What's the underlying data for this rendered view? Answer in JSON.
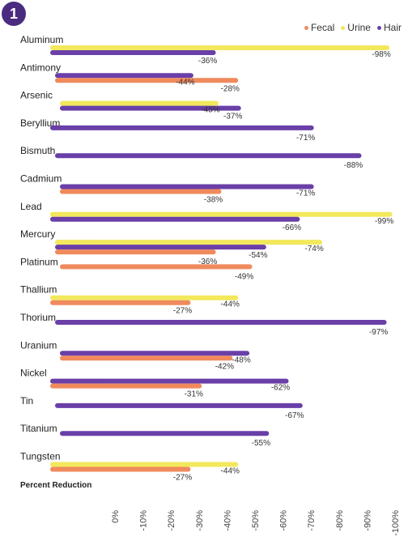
{
  "badge": "1",
  "chart_data": {
    "type": "bar",
    "orientation": "horizontal",
    "categories": [
      "Aluminum",
      "Antimony",
      "Arsenic",
      "Beryllium",
      "Bismuth",
      "Cadmium",
      "Lead",
      "Mercury",
      "Platinum",
      "Thallium",
      "Thorium",
      "Uranium",
      "Nickel",
      "Tin",
      "Titanium",
      "Tungsten"
    ],
    "series": [
      {
        "name": "Fecal",
        "color": "#f08a5d",
        "values": [
          null,
          -44,
          null,
          null,
          null,
          -38,
          null,
          -36,
          -49,
          -27,
          null,
          -42,
          -31,
          null,
          null,
          -27
        ]
      },
      {
        "name": "Urine",
        "color": "#f2e85c",
        "values": [
          -98,
          null,
          -37,
          null,
          null,
          null,
          -99,
          -74,
          null,
          -44,
          null,
          null,
          null,
          null,
          null,
          -44
        ]
      },
      {
        "name": "Hair",
        "color": "#6a3fa8",
        "values": [
          -36,
          -28,
          -45,
          -71,
          -88,
          -71,
          -66,
          -54,
          null,
          null,
          -97,
          -48,
          -62,
          -67,
          -55,
          null
        ]
      }
    ],
    "value_labels": [
      [
        "-98%",
        "-36%"
      ],
      [
        "-44%",
        "-28%"
      ],
      [
        "-45%",
        "-37%"
      ],
      [
        "-71%"
      ],
      [
        "-88%"
      ],
      [
        "-71%",
        "-38%"
      ],
      [
        "-99%",
        "-66%"
      ],
      [
        "-74%",
        "-54%",
        "-36%"
      ],
      [
        "-49%"
      ],
      [
        "-44%",
        "-27%"
      ],
      [
        "-97%"
      ],
      [
        "-48%",
        "-42%"
      ],
      [
        "-62%",
        "-31%"
      ],
      [
        "-67%"
      ],
      [
        "-55%"
      ],
      [
        "-44%",
        "-27%"
      ]
    ],
    "ticks": [
      "0%",
      "-10%",
      "-20%",
      "-30%",
      "-40%",
      "-50%",
      "-60%",
      "-70%",
      "-80%",
      "-90%",
      "-100%"
    ],
    "xlim": [
      0,
      -100
    ],
    "xlabel": "Percent Reduction",
    "legend_position": "top-right",
    "grid": false
  }
}
